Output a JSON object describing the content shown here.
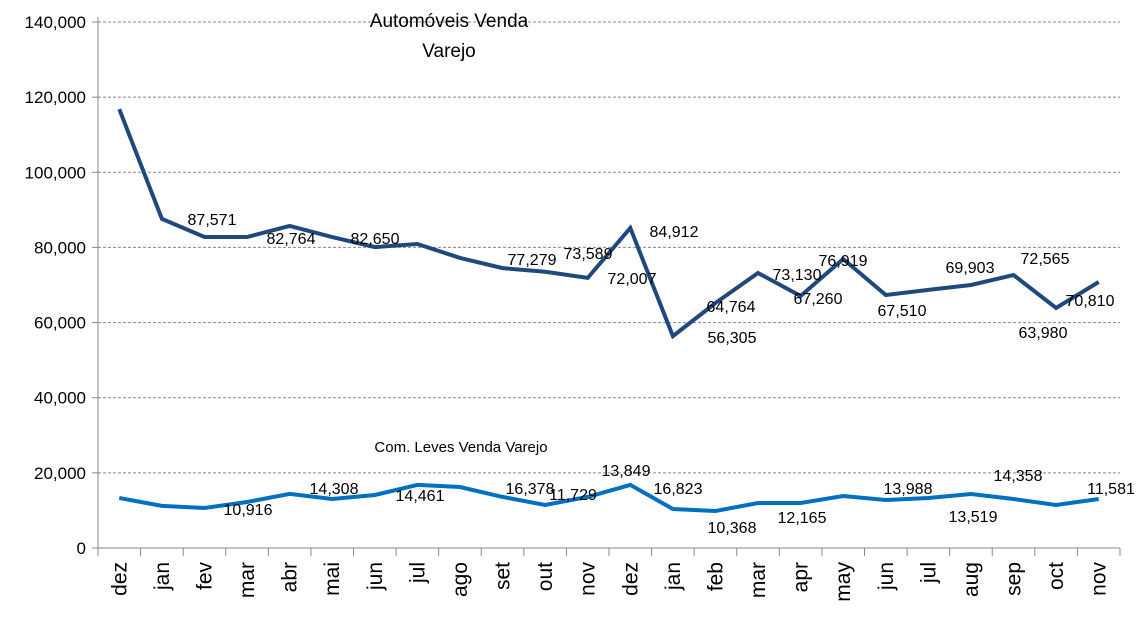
{
  "chart_data": {
    "type": "line",
    "categories": [
      "dez",
      "jan",
      "fev",
      "mar",
      "abr",
      "mai",
      "jun",
      "jul",
      "ago",
      "set",
      "out",
      "nov",
      "dez",
      "jan",
      "feb",
      "mar",
      "apr",
      "may",
      "jun",
      "jul",
      "aug",
      "sep",
      "oct",
      "nov"
    ],
    "ylim": [
      0,
      140000
    ],
    "yticks": [
      0,
      20000,
      40000,
      60000,
      80000,
      100000,
      120000,
      140000
    ],
    "ytick_labels": [
      "0",
      "20,000",
      "40,000",
      "60,000",
      "80,000",
      "100,000",
      "120,000",
      "140,000"
    ],
    "grid": true,
    "series": [
      {
        "name": "Automóveis Venda Varejo",
        "title_lines": [
          "Automóveis Venda",
          "Varejo"
        ],
        "color": "#1f497d",
        "values": [
          116800,
          87600,
          82770,
          82770,
          85700,
          82750,
          80100,
          80900,
          77200,
          74500,
          73500,
          71900,
          85170,
          56400,
          65200,
          73200,
          67070,
          76920,
          67340,
          68700,
          70000,
          72670,
          63880,
          70800
        ],
        "data_labels": [
          "87,571",
          "82,764",
          "82,650",
          "77,279",
          "73,589",
          "72,007",
          "84,912",
          "56,305",
          "64,764",
          "73,130",
          "67,260",
          "76,919",
          "67,510",
          "69,903",
          "72,565",
          "63,980",
          "70,810"
        ]
      },
      {
        "name": "Com. Leves Venda Varejo",
        "title_lines": [
          "Com. Leves Venda Varejo"
        ],
        "color": "#0070c0",
        "values": [
          13300,
          11200,
          10650,
          12250,
          14400,
          13050,
          14100,
          16800,
          16240,
          13600,
          11450,
          13600,
          16800,
          10380,
          9850,
          11980,
          11980,
          13840,
          12780,
          13300,
          14370,
          13040,
          11450,
          13040
        ],
        "data_labels": [
          "10,916",
          "14,308",
          "14,461",
          "16,378",
          "11,729",
          "13,849",
          "16,823",
          "10,368",
          "12,165",
          "13,988",
          "13,519",
          "14,358",
          "11,581"
        ]
      }
    ]
  }
}
